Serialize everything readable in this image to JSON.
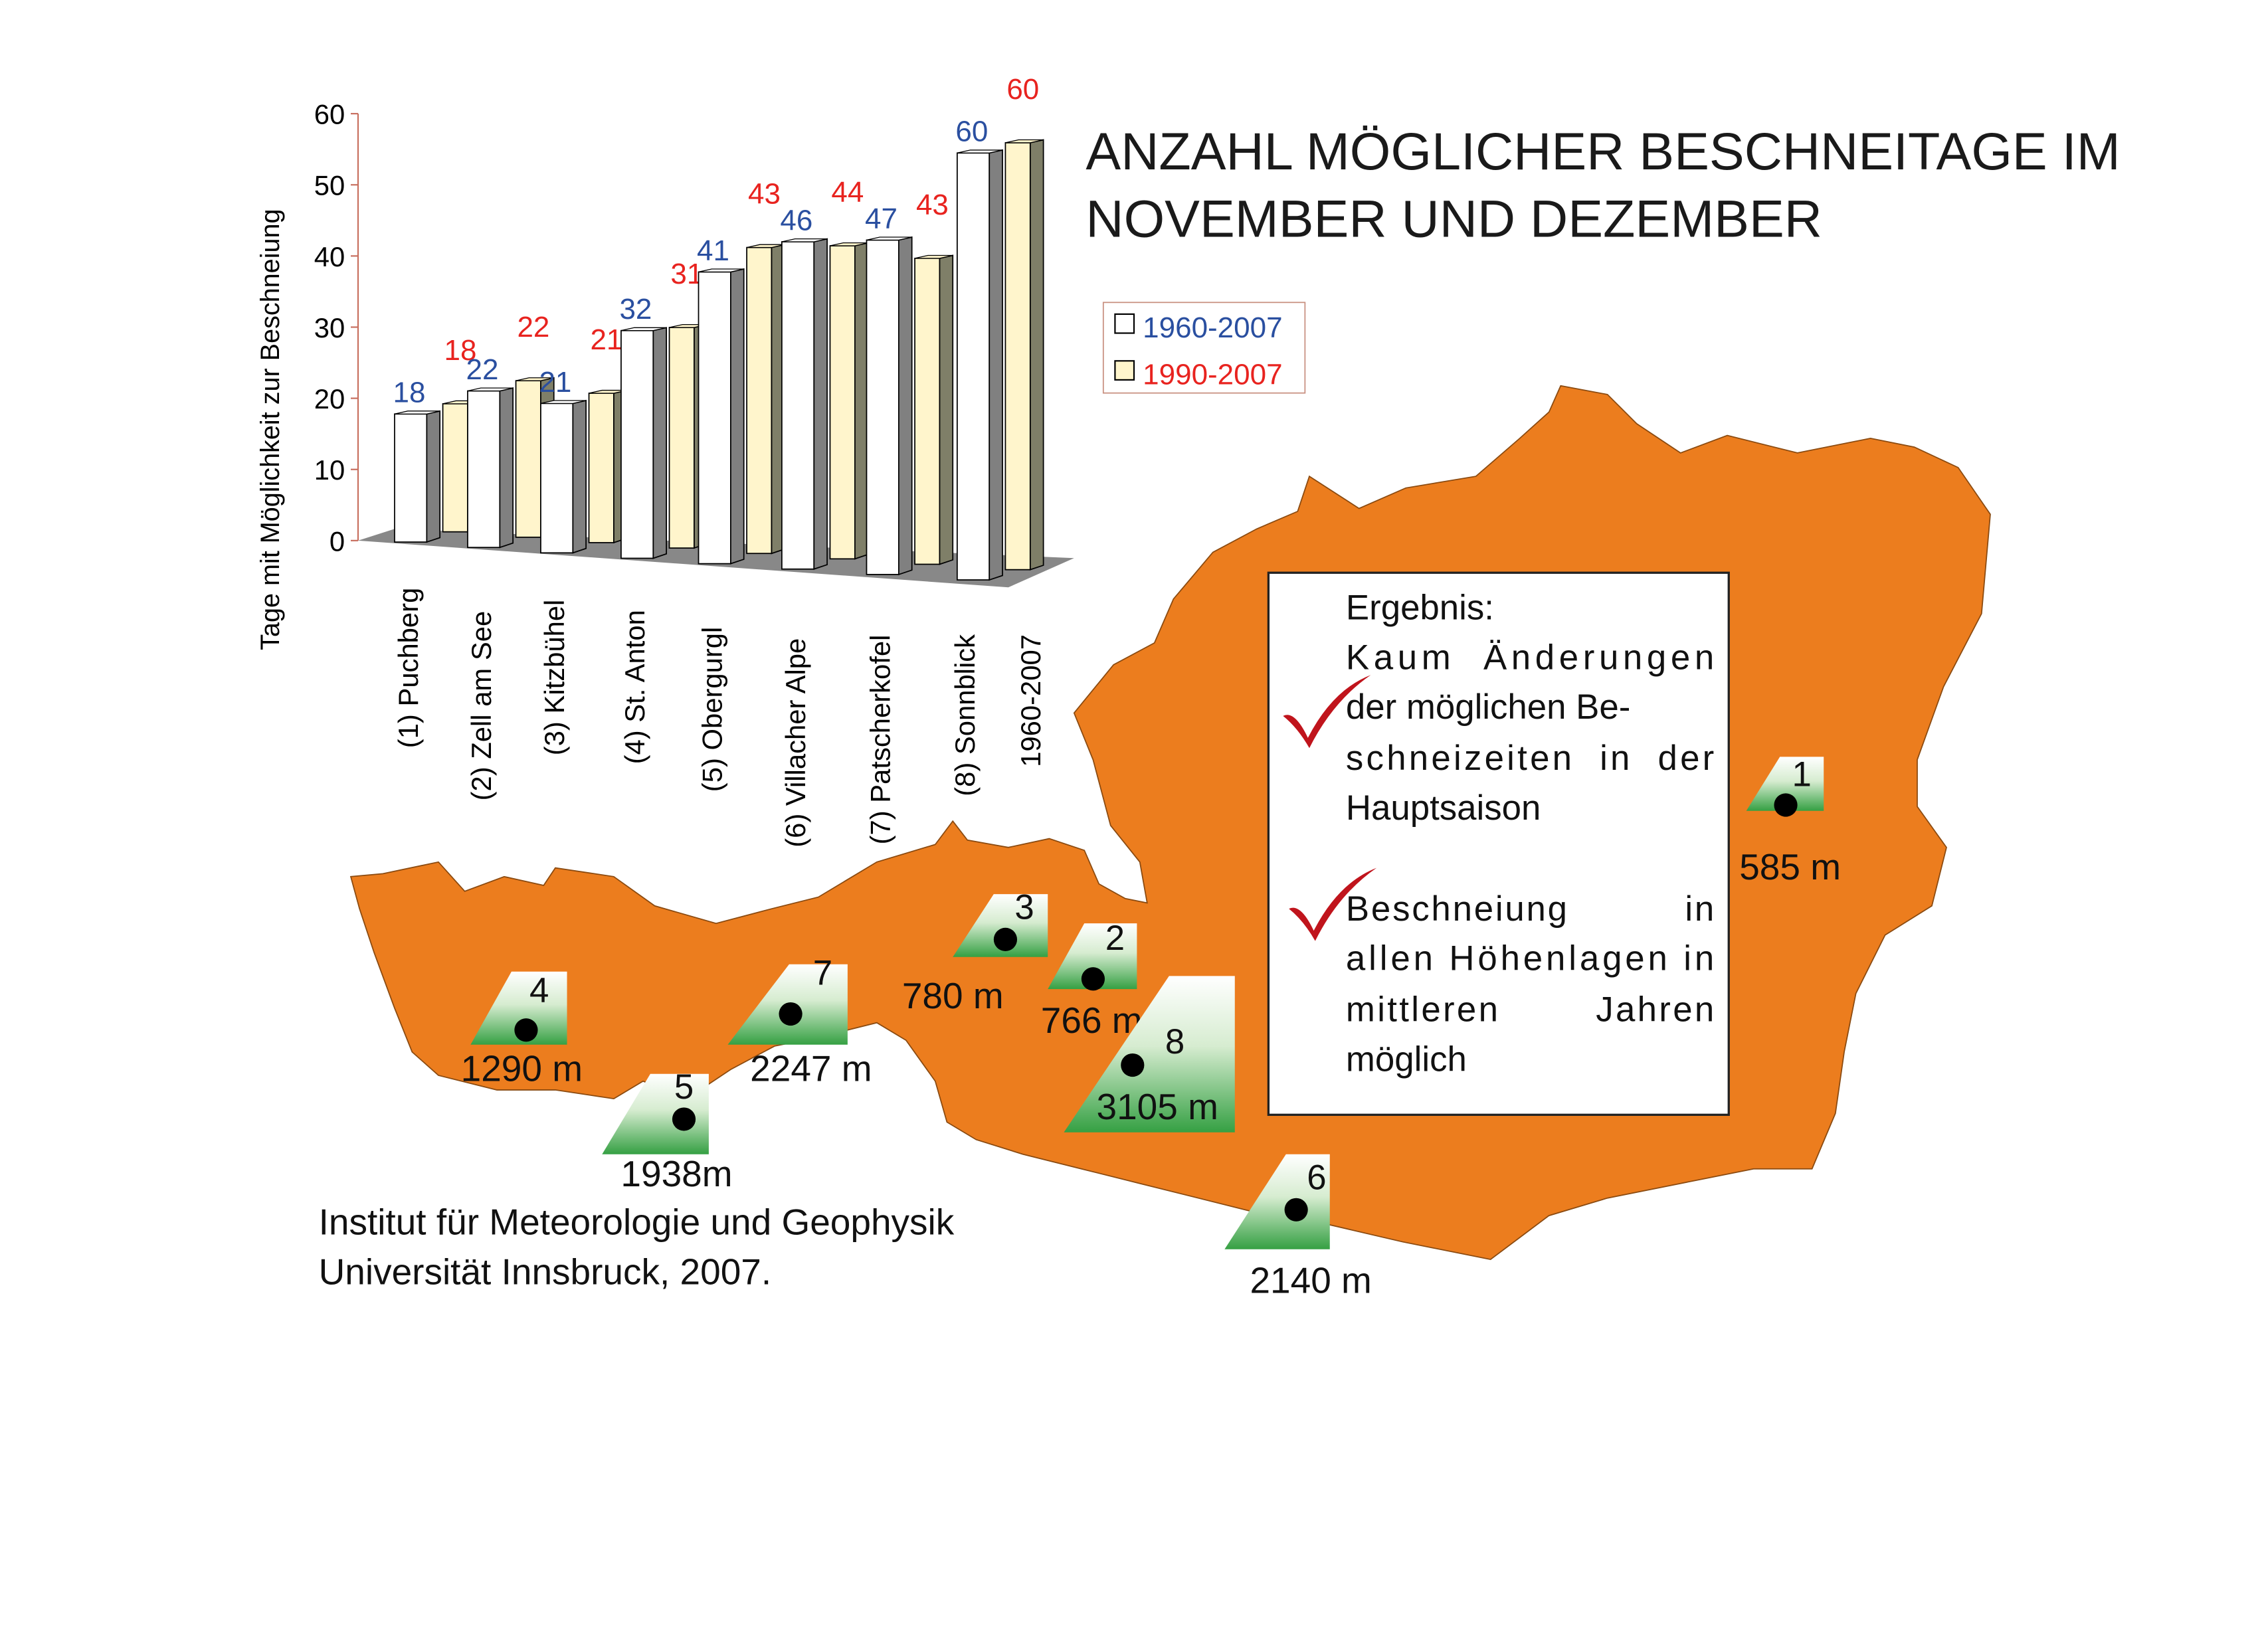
{
  "title": [
    "ANZAHL MÖGLICHER BESCHNEITAGE IM",
    "NOVEMBER UND DEZEMBER"
  ],
  "credit": [
    "Institut für Meteorologie und Geophysik",
    "Universität Innsbruck, 2007."
  ],
  "result_box": {
    "heading": "Ergebnis:",
    "point1": [
      "Kaum  Änderungen",
      "der möglichen Be-",
      "schneizeiten  in  der",
      "Hauptsaison"
    ],
    "point2": [
      "Beschneiung          in",
      "allen Höhenlagen in",
      "mittleren        Jahren",
      "möglich"
    ]
  },
  "colors": {
    "map": "#ec7d1e",
    "series1": "#ffffff",
    "series2": "#fff5cc",
    "label1": "#2a4fa0",
    "label2": "#e8231f",
    "check": "#c0141c",
    "mountain": "#3aa04a"
  },
  "stations": [
    {
      "num": "1",
      "elevation": "585 m"
    },
    {
      "num": "2",
      "elevation": "766 m"
    },
    {
      "num": "3",
      "elevation": "780 m"
    },
    {
      "num": "4",
      "elevation": "1290 m"
    },
    {
      "num": "5",
      "elevation": "1938m"
    },
    {
      "num": "6",
      "elevation": "2140 m"
    },
    {
      "num": "7",
      "elevation": "2247 m"
    },
    {
      "num": "8",
      "elevation": "3105 m"
    }
  ],
  "chart_data": {
    "type": "bar",
    "style": "3d-clustered",
    "ylabel": "Tage mit Möglichkeit zur Beschneiung",
    "ylim": [
      0,
      60
    ],
    "yticks": [
      "0",
      "10",
      "20",
      "30",
      "40",
      "50",
      "60"
    ],
    "categories": [
      "(1) Puchberg",
      "(2) Zell am See",
      "(3) Kitzbühel",
      "(4) St. Anton",
      "(5) Obergurgl",
      "(6) Villacher Alpe",
      "(7) Patscherkofel",
      "(8) Sonnblick"
    ],
    "depth_label": "1960-2007",
    "legend_position": "right",
    "series": [
      {
        "name": "1960-2007",
        "values": [
          18,
          22,
          21,
          32,
          41,
          46,
          47,
          60
        ]
      },
      {
        "name": "1990-2007",
        "values": [
          18,
          22,
          21,
          31,
          43,
          44,
          43,
          60
        ]
      }
    ]
  }
}
